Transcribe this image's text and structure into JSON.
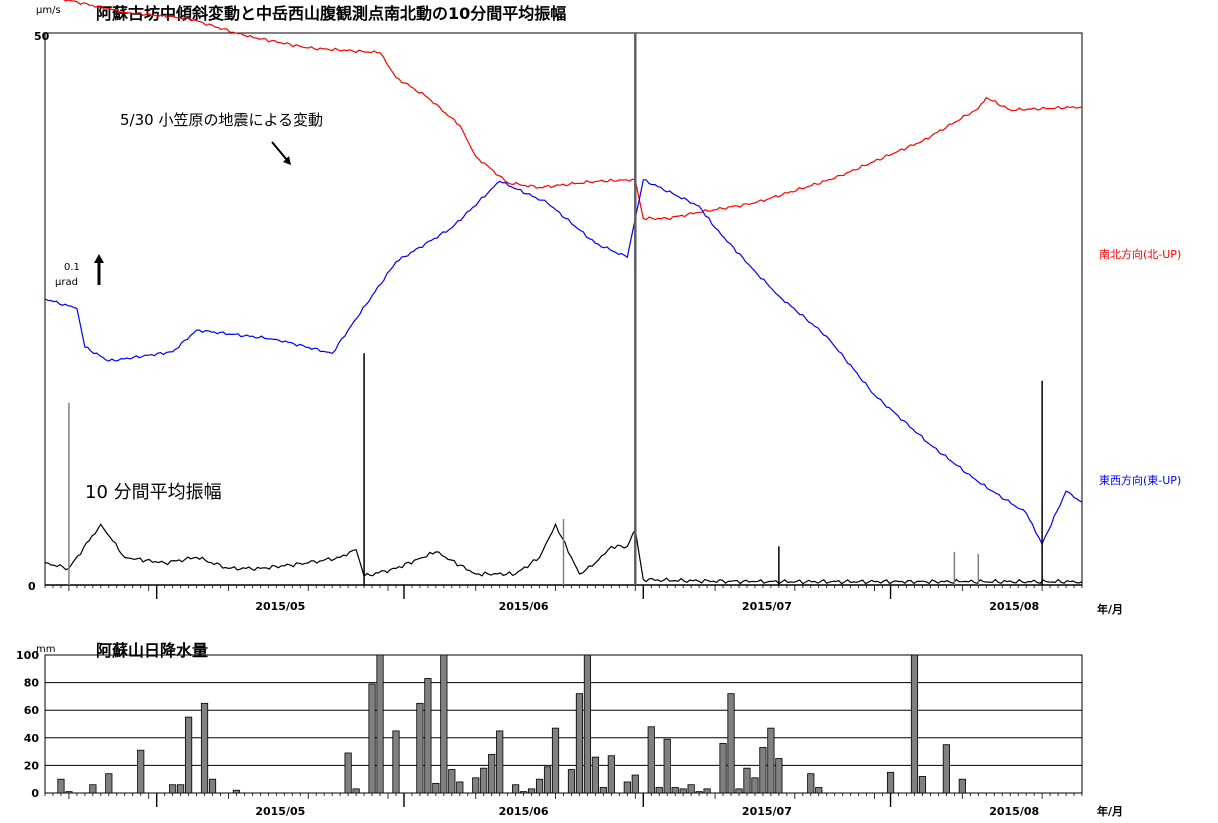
{
  "chart_data": [
    {
      "type": "line",
      "title": "阿蘇古坊中傾斜変動と中岳西山腹観測点南北動の10分間平均振幅",
      "ylabel_unit": "μm/s",
      "ylim": [
        0,
        50
      ],
      "ytick_labels": [
        "0",
        "50"
      ],
      "x_period": [
        "2015/04/17",
        "2015/08/25"
      ],
      "month_labels": [
        "2015/05",
        "2015/06",
        "2015/07",
        "2015/08"
      ],
      "x_axis_unit": "年/月",
      "scale_bar": {
        "value": "0.1",
        "unit": "μrad"
      },
      "annotations": [
        {
          "text": "5/30 小笠原の地震による変動",
          "date": "2015/05/30"
        },
        {
          "text": "10 分間平均振幅"
        }
      ],
      "series": [
        {
          "name": "南北方向(北-UP)",
          "color": "#ff0000",
          "kind": "tilt",
          "dates": [
            "2015/04/17",
            "2015/04/27",
            "2015/05/05",
            "2015/05/12",
            "2015/05/20",
            "2015/05/29",
            "2015/05/31",
            "2015/06/04",
            "2015/06/08",
            "2015/06/10",
            "2015/06/14",
            "2015/06/18",
            "2015/06/25",
            "2015/06/30",
            "2015/07/01",
            "2015/07/04",
            "2015/07/08",
            "2015/07/15",
            "2015/07/25",
            "2015/08/05",
            "2015/08/12",
            "2015/08/13",
            "2015/08/16",
            "2015/08/25"
          ],
          "values": [
            0.137,
            0.1315,
            0.1295,
            0.124,
            0.12,
            0.1185,
            0.1105,
            0.104,
            0.095,
            0.085,
            0.0765,
            0.075,
            0.077,
            0.0775,
            0.065,
            0.065,
            0.067,
            0.07,
            0.078,
            0.09,
            0.1005,
            0.104,
            0.1,
            0.101
          ]
        },
        {
          "name": "東西方向(東-UP)",
          "color": "#0000ff",
          "kind": "tilt",
          "dates": [
            "2015/04/17",
            "2015/04/21",
            "2015/04/22",
            "2015/04/25",
            "2015/05/03",
            "2015/05/06",
            "2015/05/16",
            "2015/05/23",
            "2015/05/25",
            "2015/05/31",
            "2015/06/07",
            "2015/06/13",
            "2015/06/19",
            "2015/06/25",
            "2015/06/29",
            "2015/07/01",
            "2015/07/08",
            "2015/07/10",
            "2015/07/15",
            "2015/07/18",
            "2015/07/24",
            "2015/07/30",
            "2015/08/06",
            "2015/08/12",
            "2015/08/18",
            "2015/08/20",
            "2015/08/23",
            "2015/08/24",
            "2015/08/25"
          ],
          "values": [
            0.039,
            0.036,
            0.0235,
            0.019,
            0.022,
            0.029,
            0.026,
            0.0215,
            0.029,
            0.051,
            0.062,
            0.077,
            0.07,
            0.057,
            0.0525,
            0.0775,
            0.069,
            0.062,
            0.048,
            0.04,
            0.027,
            0.008,
            -0.008,
            -0.02,
            -0.03,
            -0.04,
            -0.023,
            -0.025,
            -0.0265
          ]
        },
        {
          "name": "10分間平均振幅",
          "color": "#000000",
          "kind": "amplitude_um_s",
          "dates": [
            "2015/04/17",
            "2015/04/20",
            "2015/04/24",
            "2015/04/27",
            "2015/05/02",
            "2015/05/06",
            "2015/05/10",
            "2015/05/14",
            "2015/05/20",
            "2015/05/24",
            "2015/05/26",
            "2015/05/27",
            "2015/05/31",
            "2015/06/05",
            "2015/06/10",
            "2015/06/15",
            "2015/06/18",
            "2015/06/20",
            "2015/06/22",
            "2015/06/23",
            "2015/06/25",
            "2015/06/27",
            "2015/06/29",
            "2015/06/30",
            "2015/07/01",
            "2015/07/05",
            "2015/07/15",
            "2015/07/30",
            "2015/08/10",
            "2015/08/25"
          ],
          "values": [
            2.0,
            1.5,
            5.5,
            2.5,
            2.0,
            2.5,
            1.5,
            1.5,
            2.0,
            2.5,
            3.2,
            0.8,
            1.5,
            3.0,
            1.0,
            1.0,
            2.5,
            5.5,
            2.5,
            1.0,
            2.0,
            3.5,
            3.5,
            5.0,
            0.5,
            0.4,
            0.3,
            0.3,
            0.3,
            0.3
          ]
        }
      ],
      "spikes": [
        {
          "date": "2015/04/20",
          "value": 16.5,
          "color": "#808080"
        },
        {
          "date": "2015/05/27",
          "value": 21.0,
          "color": "#000000"
        },
        {
          "date": "2015/06/30",
          "value": 50.0,
          "color": "#606060"
        },
        {
          "date": "2015/06/21",
          "value": 6.0,
          "color": "#808080"
        },
        {
          "date": "2015/07/18",
          "value": 3.5,
          "color": "#000000"
        },
        {
          "date": "2015/08/09",
          "value": 3.0,
          "color": "#808080"
        },
        {
          "date": "2015/08/12",
          "value": 2.8,
          "color": "#808080"
        },
        {
          "date": "2015/08/20",
          "value": 18.5,
          "color": "#000000"
        }
      ]
    },
    {
      "type": "bar",
      "title": "阿蘇山日降水量",
      "ylabel_unit": "mm",
      "ylim": [
        0,
        100
      ],
      "yticks": [
        0,
        20,
        40,
        60,
        80,
        100
      ],
      "ytick_labels": [
        "0",
        "20",
        "40",
        "60",
        "80",
        "100"
      ],
      "grid": true,
      "x_period": [
        "2015/04/17",
        "2015/08/25"
      ],
      "month_labels": [
        "2015/05",
        "2015/06",
        "2015/07",
        "2015/08"
      ],
      "x_axis_unit": "年/月",
      "bar_color": "#808080",
      "dates": [
        "2015/04/19",
        "2015/04/20",
        "2015/04/23",
        "2015/04/25",
        "2015/04/29",
        "2015/05/03",
        "2015/05/04",
        "2015/05/05",
        "2015/05/07",
        "2015/05/08",
        "2015/05/11",
        "2015/05/25",
        "2015/05/26",
        "2015/05/28",
        "2015/05/29",
        "2015/05/31",
        "2015/06/03",
        "2015/06/04",
        "2015/06/05",
        "2015/06/06",
        "2015/06/07",
        "2015/06/08",
        "2015/06/10",
        "2015/06/11",
        "2015/06/12",
        "2015/06/13",
        "2015/06/15",
        "2015/06/16",
        "2015/06/17",
        "2015/06/18",
        "2015/06/19",
        "2015/06/20",
        "2015/06/22",
        "2015/06/23",
        "2015/06/24",
        "2015/06/25",
        "2015/06/26",
        "2015/06/27",
        "2015/06/29",
        "2015/06/30",
        "2015/07/02",
        "2015/07/03",
        "2015/07/04",
        "2015/07/05",
        "2015/07/06",
        "2015/07/07",
        "2015/07/08",
        "2015/07/09",
        "2015/07/11",
        "2015/07/12",
        "2015/07/13",
        "2015/07/14",
        "2015/07/15",
        "2015/07/16",
        "2015/07/17",
        "2015/07/18",
        "2015/07/22",
        "2015/07/23",
        "2015/08/01",
        "2015/08/04",
        "2015/08/05",
        "2015/08/08",
        "2015/08/10",
        "2015/08/16",
        "2015/08/17",
        "2015/08/18",
        "2015/08/22",
        "2015/08/23"
      ],
      "values": [
        10,
        1,
        6,
        14,
        31,
        6,
        6,
        55,
        65,
        10,
        2,
        29,
        3,
        79,
        100,
        45,
        65,
        83,
        7,
        100,
        17,
        8,
        11,
        18,
        28,
        45,
        6,
        1,
        3,
        10,
        19,
        47,
        17,
        72,
        100,
        26,
        4,
        27,
        8,
        13,
        48,
        4,
        39,
        4,
        3,
        6,
        1,
        3,
        36,
        72,
        3,
        18,
        11,
        33,
        47,
        25,
        14,
        4,
        15,
        100,
        12,
        35,
        10,
        0,
        0,
        0,
        0,
        0
      ]
    }
  ]
}
